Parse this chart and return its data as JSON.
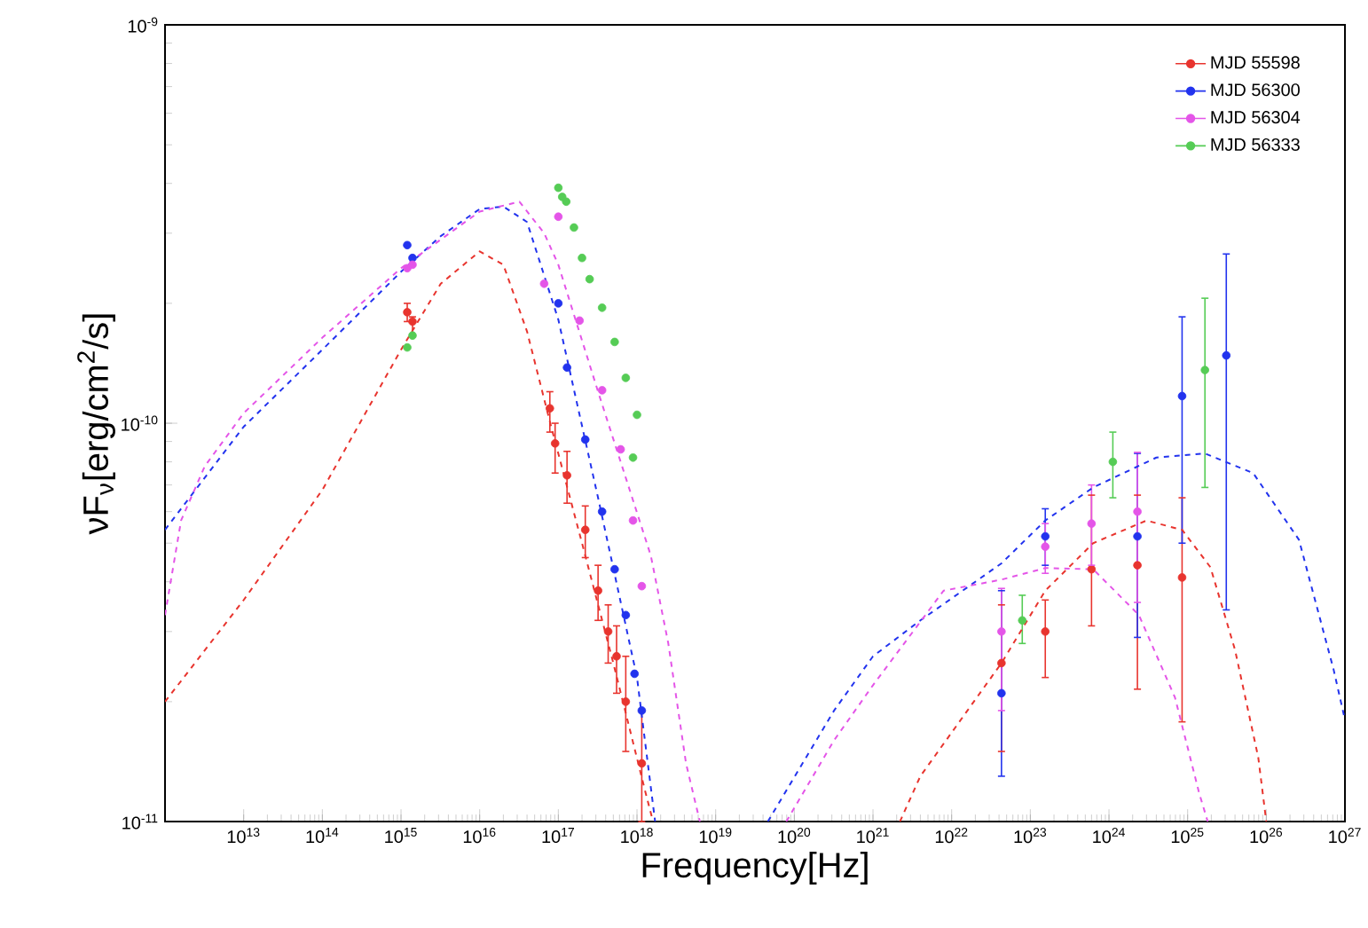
{
  "chart_data": {
    "type": "scatter",
    "xlabel": "Frequency[Hz]",
    "ylabel": "νF$_{ν}$[erg/cm$^{2}$/s]",
    "log": "xy",
    "legend": "top right",
    "xlim": [
      1000000000000.0,
      1e+27
    ],
    "ylim": [
      1e-11,
      1e-09
    ],
    "xticks": [
      {
        "value": 10000000000000.0,
        "label": "10$^{13}$"
      },
      {
        "value": 100000000000000.0,
        "label": "10$^{14}$"
      },
      {
        "value": 1000000000000000.0,
        "label": "10$^{15}$"
      },
      {
        "value": 1e+16,
        "label": "10$^{16}$"
      },
      {
        "value": 1e+17,
        "label": "10$^{17}$"
      },
      {
        "value": 1e+18,
        "label": "10$^{18}$"
      },
      {
        "value": 1e+19,
        "label": "10$^{19}$"
      },
      {
        "value": 1e+20,
        "label": "10$^{20}$"
      },
      {
        "value": 1e+21,
        "label": "10$^{21}$"
      },
      {
        "value": 1e+22,
        "label": "10$^{22}$"
      },
      {
        "value": 1e+23,
        "label": "10$^{23}$"
      },
      {
        "value": 1e+24,
        "label": "10$^{24}$"
      },
      {
        "value": 1e+25,
        "label": "10$^{25}$"
      },
      {
        "value": 1e+26,
        "label": "10$^{26}$"
      },
      {
        "value": 1e+27,
        "label": "10$^{27}$"
      }
    ],
    "yticks": [
      {
        "value": 1e-11,
        "label": "10$^{-11}$"
      },
      {
        "value": 1e-10,
        "label": "10$^{-10}$"
      },
      {
        "value": 1e-09,
        "label": "10$^{-9}$"
      }
    ],
    "series": [
      {
        "name": "MJD 55598",
        "color": "#e8342e",
        "marker": "circle",
        "x": [
          1200000000000000.0,
          1400000000000000.0,
          7.8e+16,
          9.1e+16,
          1.29e+17,
          2.2e+17,
          3.2e+17,
          4.3e+17,
          5.5e+17,
          7.2e+17,
          1.15e+18,
          4.3e+22,
          1.55e+23,
          6e+23,
          2.3e+24,
          8.5e+24
        ],
        "values": [
          1.9e-10,
          1.8e-10,
          1.09e-10,
          8.9e-11,
          7.4e-11,
          5.4e-11,
          3.8e-11,
          3e-11,
          2.6e-11,
          2e-11,
          1.4e-11,
          2.5e-11,
          3e-11,
          4.3e-11,
          4.4e-11,
          4.1e-11
        ],
        "errors": [
          [
            1.8e-10,
            2e-10
          ],
          [
            1.65e-10,
            1.85e-10
          ],
          [
            9.5e-11,
            1.2e-10
          ],
          [
            7.5e-11,
            1e-10
          ],
          [
            6.3e-11,
            8.5e-11
          ],
          [
            4.6e-11,
            6.2e-11
          ],
          [
            3.2e-11,
            4.4e-11
          ],
          [
            2.5e-11,
            3.5e-11
          ],
          [
            2.1e-11,
            3.1e-11
          ],
          [
            1.5e-11,
            2.6e-11
          ],
          [
            1e-11,
            1.9e-11
          ],
          [
            1.5e-11,
            3.5e-11
          ],
          [
            2.3e-11,
            3.6e-11
          ],
          [
            3.1e-11,
            6.6e-11
          ],
          [
            2.15e-11,
            6.6e-11
          ],
          [
            1.78e-11,
            6.5e-11
          ]
        ]
      },
      {
        "name": "MJD 56300",
        "color": "#2233ee",
        "marker": "circle",
        "x": [
          1200000000000000.0,
          1400000000000000.0,
          1e+17,
          1.29e+17,
          2.2e+17,
          3.6e+17,
          5.2e+17,
          7.2e+17,
          9.3e+17,
          1.15e+18,
          4.3e+22,
          1.55e+23,
          2.3e+24,
          8.5e+24,
          3.1e+25
        ],
        "values": [
          2.8e-10,
          2.6e-10,
          2e-10,
          1.38e-10,
          9.1e-11,
          6e-11,
          4.3e-11,
          3.3e-11,
          2.35e-11,
          1.9e-11,
          2.1e-11,
          5.2e-11,
          5.2e-11,
          1.17e-10,
          1.48e-10
        ],
        "errors": [
          null,
          null,
          null,
          null,
          null,
          null,
          null,
          null,
          null,
          null,
          [
            1.3e-11,
            3.8e-11
          ],
          [
            4.4e-11,
            6.1e-11
          ],
          [
            2.9e-11,
            8.4e-11
          ],
          [
            5e-11,
            1.85e-10
          ],
          [
            3.4e-11,
            2.66e-10
          ]
        ]
      },
      {
        "name": "MJD 56304",
        "color": "#e455e8",
        "marker": "circle",
        "x": [
          1200000000000000.0,
          1400000000000000.0,
          6.6e+16,
          1e+17,
          1.86e+17,
          3.6e+17,
          6.2e+17,
          8.9e+17,
          1.15e+18,
          4.3e+22,
          1.55e+23,
          6e+23,
          2.3e+24
        ],
        "values": [
          2.45e-10,
          2.5e-10,
          2.24e-10,
          3.3e-10,
          1.81e-10,
          1.21e-10,
          8.6e-11,
          5.7e-11,
          3.9e-11,
          3e-11,
          4.9e-11,
          5.6e-11,
          6e-11
        ],
        "errors": [
          null,
          null,
          null,
          null,
          null,
          null,
          null,
          null,
          null,
          [
            1.9e-11,
            3.85e-11
          ],
          [
            4.2e-11,
            5.6e-11
          ],
          [
            4.4e-11,
            7e-11
          ],
          [
            3.55e-11,
            8.45e-11
          ]
        ]
      },
      {
        "name": "MJD 56333",
        "color": "#55cc55",
        "marker": "circle",
        "x": [
          1200000000000000.0,
          1400000000000000.0,
          1e+17,
          1.12e+17,
          1.26e+17,
          1.58e+17,
          2e+17,
          2.5e+17,
          3.6e+17,
          5.2e+17,
          7.2e+17,
          8.9e+17,
          1e+18,
          7.9e+22,
          1.12e+24,
          1.66e+25
        ],
        "values": [
          1.55e-10,
          1.66e-10,
          3.9e-10,
          3.7e-10,
          3.6e-10,
          3.1e-10,
          2.6e-10,
          2.3e-10,
          1.95e-10,
          1.6e-10,
          1.3e-10,
          8.2e-11,
          1.05e-10,
          3.2e-11,
          8e-11,
          1.36e-10
        ],
        "errors": [
          null,
          null,
          null,
          null,
          null,
          null,
          null,
          null,
          null,
          null,
          null,
          null,
          null,
          [
            2.8e-11,
            3.7e-11
          ],
          [
            6.5e-11,
            9.5e-11
          ],
          [
            6.9e-11,
            2.06e-10
          ]
        ]
      },
      {
        "color": "#e8342e",
        "type": "line",
        "line_style": "dashed",
        "x": [
          1000000000000.0,
          10000000000000.0,
          100000000000000.0,
          1000000000000000.0,
          3200000000000000.0,
          1e+16,
          2e+16,
          4e+16,
          7.9e+16,
          2e+17,
          5e+17,
          1.26e+18,
          1.6e+18,
          1e+19,
          2.2e+21,
          4e+21,
          4.3e+22,
          1.55e+23,
          6.3e+23,
          3e+24,
          8.5e+24,
          1.95e+25,
          4e+25,
          7.9e+25,
          1e+26
        ],
        "values": [
          2e-11,
          3.6e-11,
          6.8e-11,
          1.53e-10,
          2.24e-10,
          2.7e-10,
          2.5e-10,
          1.7e-10,
          1e-10,
          5e-11,
          2.5e-11,
          1.2e-11,
          1e-11,
          null,
          1e-11,
          1.3e-11,
          2.5e-11,
          3.8e-11,
          5e-11,
          5.7e-11,
          5.4e-11,
          4.35e-11,
          2.7e-11,
          1.45e-11,
          1e-11
        ]
      },
      {
        "color": "#2233ee",
        "type": "line",
        "line_style": "dashed",
        "x": [
          1000000000000.0,
          10000000000000.0,
          100000000000000.0,
          1000000000000000.0,
          3200000000000000.0,
          1e+16,
          2e+16,
          4e+16,
          1e+17,
          3.2e+17,
          1e+18,
          1.7e+18,
          1e+19,
          4.6e+19,
          3.2e+20,
          1e+21,
          4e+21,
          4.3e+22,
          1.55e+23,
          6.3e+23,
          4e+24,
          1.66e+25,
          6.8e+25,
          2.6e+26,
          7.2e+26,
          1e+27
        ],
        "values": [
          5.4e-11,
          9.8e-11,
          1.53e-10,
          2.4e-10,
          2.95e-10,
          3.45e-10,
          3.5e-10,
          3.2e-10,
          1.82e-10,
          6.5e-11,
          2.3e-11,
          1e-11,
          null,
          1e-11,
          1.9e-11,
          2.6e-11,
          3.2e-11,
          4.45e-11,
          5.7e-11,
          6.9e-11,
          8.2e-11,
          8.4e-11,
          7.5e-11,
          5.1e-11,
          2.4e-11,
          1.8e-11
        ]
      },
      {
        "color": "#e455e8",
        "type": "line",
        "line_style": "dashed",
        "x": [
          1000000000000.0,
          1600000000000.0,
          3200000000000.0,
          10000000000000.0,
          100000000000000.0,
          1000000000000000.0,
          1e+16,
          3.2e+16,
          6.6e+16,
          1e+17,
          3.2e+17,
          1.5e+18,
          2.5e+18,
          4.2e+18,
          6.3e+18,
          1e+19,
          7.9e+19,
          3.2e+20,
          1e+21,
          7.9e+21,
          4.3e+22,
          1.55e+23,
          6.3e+23,
          2.4e+24,
          6.9e+24,
          1.4e+25,
          1.8e+25
        ],
        "values": [
          3.3e-11,
          5.7e-11,
          7.8e-11,
          1.06e-10,
          1.64e-10,
          2.45e-10,
          3.4e-10,
          3.6e-10,
          3e-10,
          2.5e-10,
          1.2e-10,
          4.65e-11,
          2.8e-11,
          1.4e-11,
          1e-11,
          null,
          1e-11,
          1.6e-11,
          2.2e-11,
          3.8e-11,
          4.05e-11,
          4.33e-11,
          4.3e-11,
          3.3e-11,
          2.05e-11,
          1.18e-11,
          1e-11
        ]
      }
    ]
  }
}
